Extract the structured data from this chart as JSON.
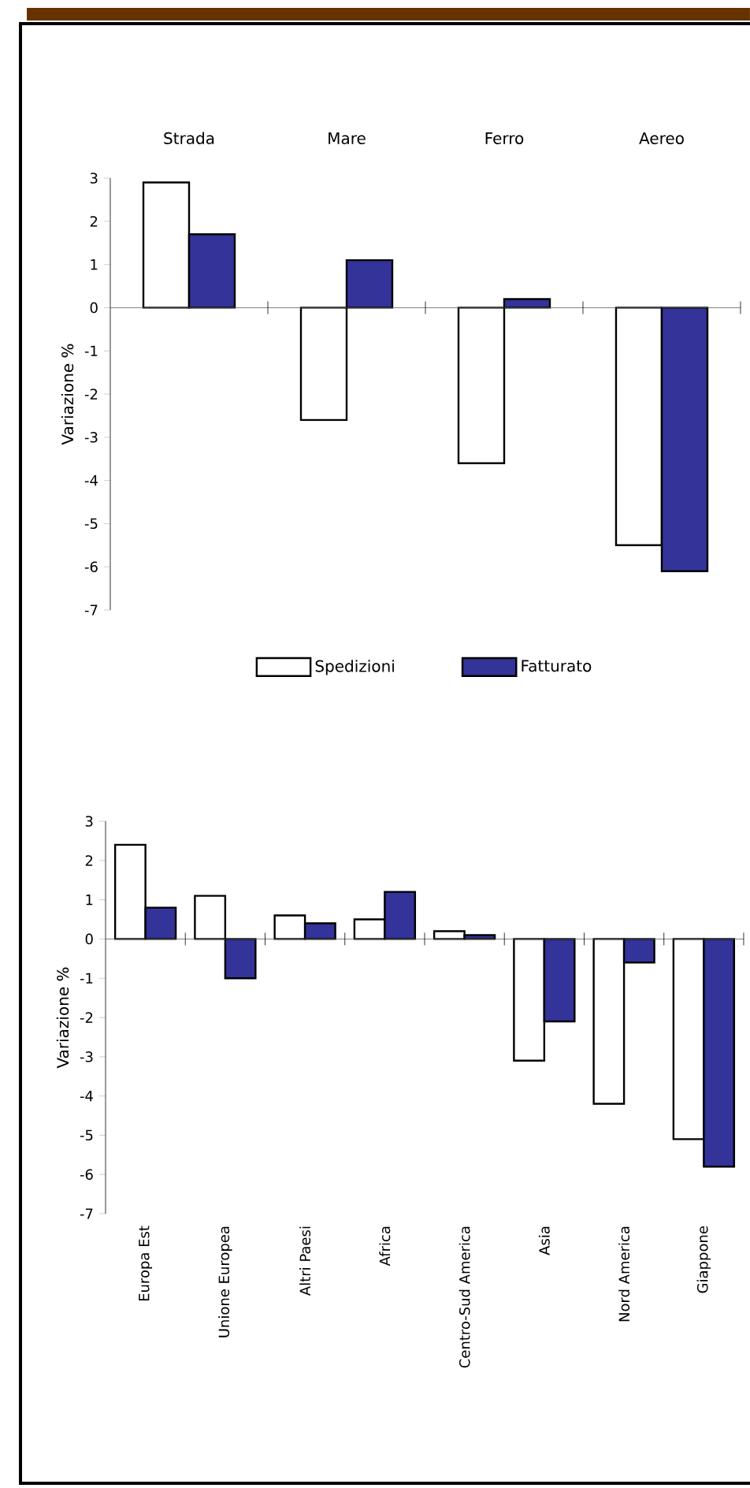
{
  "chart_data": [
    {
      "type": "bar",
      "categories": [
        "Strada",
        "Mare",
        "Ferro",
        "Aereo"
      ],
      "ylabel": "Variazione %",
      "ylim": [
        -7,
        3
      ],
      "yticks": [
        -7,
        -6,
        -5,
        -4,
        -3,
        -2,
        -1,
        0,
        1,
        2,
        3
      ],
      "legend": "bottom",
      "series": [
        {
          "name": "Spedizioni",
          "color": "#ffffff",
          "values": [
            2.9,
            -2.6,
            -3.6,
            -5.5
          ]
        },
        {
          "name": "Fatturato",
          "color": "#333399",
          "values": [
            1.7,
            1.1,
            0.2,
            -6.1
          ]
        }
      ]
    },
    {
      "type": "bar",
      "categories": [
        "Europa Est",
        "Unione Europea",
        "Altri Paesi",
        "Africa",
        "Centro-Sud America",
        "Asia",
        "Nord America",
        "Giappone"
      ],
      "ylabel": "Variazione %",
      "ylim": [
        -7,
        3
      ],
      "yticks": [
        -7,
        -6,
        -5,
        -4,
        -3,
        -2,
        -1,
        0,
        1,
        2,
        3
      ],
      "series": [
        {
          "color": "#ffffff",
          "values": [
            2.4,
            1.1,
            0.6,
            0.5,
            0.2,
            -3.1,
            -4.2,
            -5.1
          ]
        },
        {
          "color": "#333399",
          "values": [
            0.8,
            -1.0,
            0.4,
            1.2,
            0.1,
            -2.1,
            -0.6,
            -5.8
          ]
        }
      ]
    }
  ]
}
